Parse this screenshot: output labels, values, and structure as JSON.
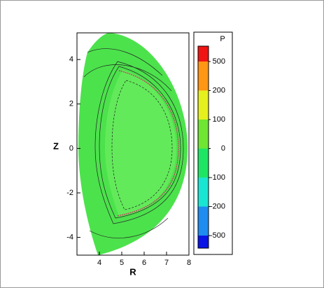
{
  "chart_data": {
    "type": "contour",
    "xlabel": "R",
    "ylabel": "Z",
    "xlim": [
      3,
      8
    ],
    "ylim": [
      -4.8,
      5.2
    ],
    "xticks": [
      4,
      5,
      6,
      7,
      8
    ],
    "yticks": [
      -4,
      -2,
      0,
      2,
      4
    ],
    "colorbar": {
      "title": "P",
      "levels": [
        -500,
        -200,
        -100,
        0,
        100,
        200,
        500
      ],
      "colors": [
        "#0a14e6",
        "#1e8cf0",
        "#19e6d2",
        "#1ee664",
        "#6ee632",
        "#e6f01e",
        "#ff9614",
        "#f01414"
      ]
    }
  }
}
